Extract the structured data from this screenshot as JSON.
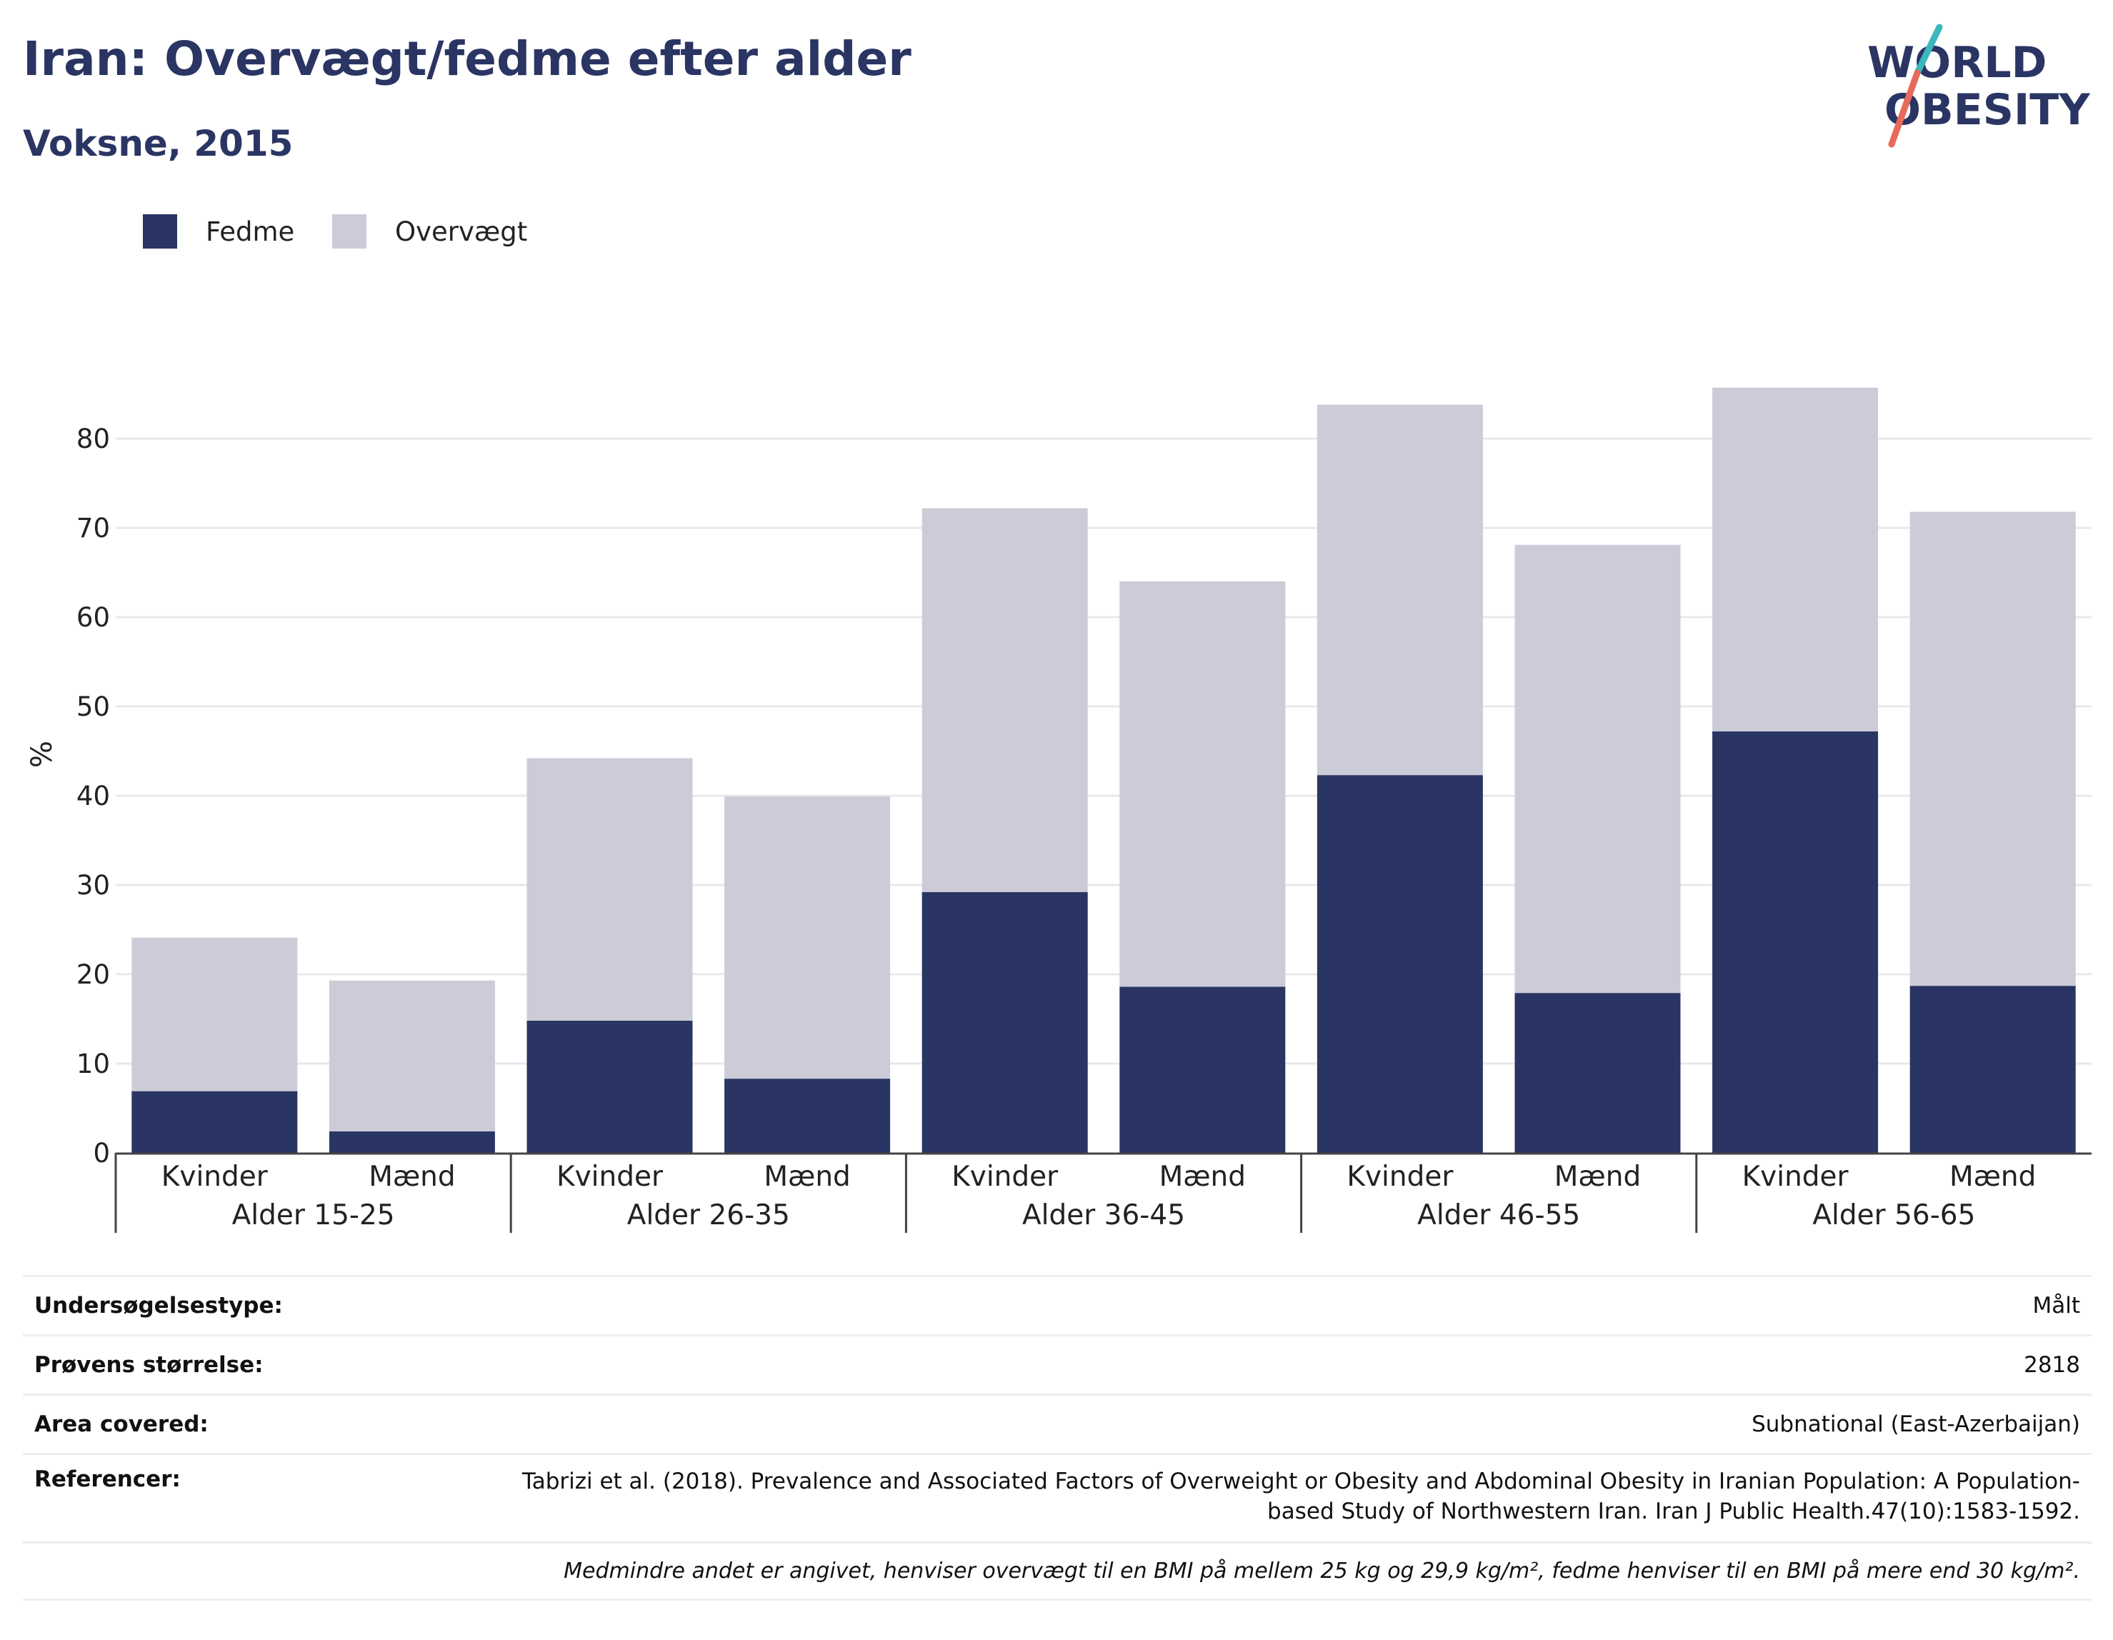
{
  "title": "Iran: Overvægt/fedme efter alder",
  "subtitle": "Voksne, 2015",
  "logo": {
    "line1": "WORLD",
    "line2": "OBESITY"
  },
  "colors": {
    "fedme": "#2a3563",
    "overvaegt": "#cbccd7",
    "accent_teal": "#3bb7bd",
    "accent_coral": "#e86a5a",
    "grid": "#e8e8ec"
  },
  "legend": [
    {
      "label": "Fedme",
      "color": "#2a3563"
    },
    {
      "label": "Overvægt",
      "color": "#cbccd7"
    }
  ],
  "chart_data": {
    "type": "bar",
    "stacked": true,
    "title": "",
    "ylabel": "%",
    "ylim": [
      0,
      90
    ],
    "yticks": [
      0,
      10,
      20,
      30,
      40,
      50,
      60,
      70,
      80
    ],
    "grid": true,
    "legend_position": "top-left",
    "groups": [
      "Alder 15-25",
      "Alder 26-35",
      "Alder 36-45",
      "Alder 46-55",
      "Alder 56-65"
    ],
    "categories": [
      "Kvinder",
      "Mænd",
      "Kvinder",
      "Mænd",
      "Kvinder",
      "Mænd",
      "Kvinder",
      "Mænd",
      "Kvinder",
      "Mænd"
    ],
    "series": [
      {
        "name": "Fedme",
        "values": [
          6.9,
          2.4,
          14.8,
          8.3,
          29.2,
          18.6,
          42.3,
          17.9,
          47.2,
          18.7
        ]
      },
      {
        "name": "Overvægt",
        "values": [
          17.2,
          16.9,
          29.4,
          31.6,
          43.0,
          45.4,
          41.5,
          50.2,
          38.5,
          53.1
        ]
      }
    ]
  },
  "info": {
    "rows": [
      {
        "label": "Undersøgelsestype:",
        "value": "Målt"
      },
      {
        "label": "Prøvens størrelse:",
        "value": "2818"
      },
      {
        "label": "Area covered:",
        "value": "Subnational (East-Azerbaijan)"
      }
    ],
    "references_label": "Referencer:",
    "references_value": "Tabrizi et al. (2018). Prevalence and Associated Factors of Overweight or Obesity and Abdominal Obesity in Iranian Population: A Population-based Study of Northwestern Iran. Iran J Public Health.47(10):1583-1592.",
    "note": "Medmindre andet er angivet, henviser overvægt til en BMI på mellem 25 kg og 29,9 kg/m², fedme henviser til en BMI på mere end 30 kg/m²."
  }
}
